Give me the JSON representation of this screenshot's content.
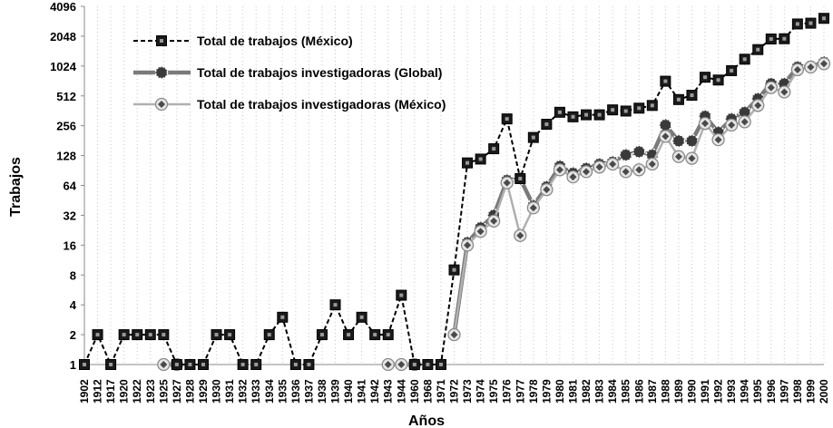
{
  "chart_data": {
    "type": "line",
    "title": "",
    "xlabel": "Años",
    "ylabel": "Trabajos",
    "y_scale": "log2",
    "ylim": [
      1,
      4096
    ],
    "y_ticks": [
      "1",
      "2",
      "4",
      "8",
      "16",
      "32",
      "64",
      "128",
      "256",
      "512",
      "1024",
      "2048",
      "4096"
    ],
    "grid": "vertical dotted",
    "legend_position": "top-left",
    "colors": {
      "mexico_total": "#000000",
      "global": "#7a7a7a",
      "mexico_inv": "#b0b0b0"
    },
    "categories": [
      "1902",
      "1912",
      "1917",
      "1920",
      "1922",
      "1923",
      "1925",
      "1927",
      "1928",
      "1929",
      "1930",
      "1931",
      "1932",
      "1933",
      "1934",
      "1935",
      "1936",
      "1937",
      "1938",
      "1939",
      "1940",
      "1941",
      "1942",
      "1943",
      "1944",
      "1960",
      "1968",
      "1971",
      "1972",
      "1973",
      "1974",
      "1975",
      "1976",
      "1977",
      "1978",
      "1979",
      "1980",
      "1981",
      "1982",
      "1983",
      "1984",
      "1985",
      "1986",
      "1987",
      "1988",
      "1989",
      "1990",
      "1991",
      "1992",
      "1993",
      "1994",
      "1995",
      "1996",
      "1997",
      "1998",
      "1999",
      "2000"
    ],
    "series": [
      {
        "name": "Total de trabajos (México)",
        "style": "dashed-square",
        "values": [
          1,
          2,
          1,
          2,
          2,
          2,
          2,
          1,
          1,
          1,
          2,
          2,
          1,
          1,
          2,
          3,
          1,
          1,
          2,
          4,
          2,
          3,
          2,
          2,
          5,
          1,
          1,
          1,
          9,
          108,
          118,
          150,
          300,
          75,
          195,
          265,
          350,
          315,
          330,
          330,
          370,
          360,
          385,
          410,
          720,
          470,
          520,
          790,
          740,
          920,
          1200,
          1500,
          1920,
          1930,
          2720,
          2770,
          3100
        ]
      },
      {
        "name": "Total de trabajos investigadoras (Global)",
        "style": "solid-gray",
        "values": [
          null,
          null,
          null,
          null,
          null,
          null,
          1,
          1,
          null,
          null,
          null,
          null,
          null,
          null,
          null,
          null,
          null,
          null,
          null,
          null,
          null,
          null,
          null,
          1,
          1,
          1,
          null,
          null,
          2,
          17,
          24,
          32,
          72,
          75,
          40,
          62,
          100,
          85,
          95,
          105,
          110,
          130,
          140,
          130,
          260,
          180,
          180,
          320,
          220,
          300,
          350,
          480,
          680,
          680,
          1000,
          1020,
          1120
        ]
      },
      {
        "name": "Total de trabajos investigadoras (México)",
        "style": "solid-diamond",
        "values": [
          null,
          null,
          null,
          null,
          null,
          null,
          1,
          1,
          null,
          null,
          null,
          null,
          null,
          null,
          null,
          null,
          null,
          null,
          null,
          null,
          null,
          null,
          null,
          1,
          1,
          1,
          null,
          null,
          2,
          16,
          22,
          28,
          68,
          20,
          38,
          58,
          92,
          78,
          88,
          98,
          105,
          88,
          92,
          105,
          200,
          125,
          120,
          270,
          185,
          260,
          280,
          410,
          620,
          560,
          940,
          1000,
          1080
        ]
      }
    ]
  }
}
